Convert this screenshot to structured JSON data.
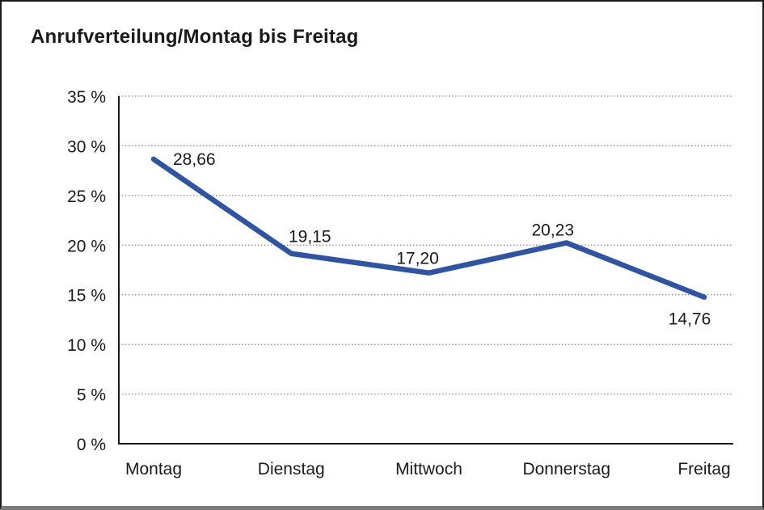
{
  "frame": {
    "border_color": "#1a1a1a",
    "bottom_bar_color": "#7a7a7a",
    "background": "#ffffff"
  },
  "chart_data": {
    "type": "line",
    "title": "Anrufverteilung/Montag bis Freitag",
    "categories": [
      "Montag",
      "Dienstag",
      "Mittwoch",
      "Donnerstag",
      "Freitag"
    ],
    "series": [
      {
        "name": "Anrufverteilung",
        "values": [
          28.66,
          19.15,
          17.2,
          20.23,
          14.76
        ],
        "value_labels": [
          "28,66",
          "19,15",
          "17,20",
          "20,23",
          "14,76"
        ],
        "color": "#3154a0"
      }
    ],
    "xlabel": "",
    "ylabel": "",
    "ylim": [
      0,
      35
    ],
    "y_tick_step": 5,
    "y_ticks": [
      {
        "value": 35,
        "label": "35 %"
      },
      {
        "value": 30,
        "label": "30 %"
      },
      {
        "value": 25,
        "label": "25 %"
      },
      {
        "value": 20,
        "label": "20 %"
      },
      {
        "value": 15,
        "label": "15 %"
      },
      {
        "value": 10,
        "label": "10 %"
      },
      {
        "value": 5,
        "label": "5 %"
      },
      {
        "value": 0,
        "label": "0 %"
      }
    ],
    "grid": "horizontal-dotted",
    "grid_color": "#666666",
    "axis_color": "#1a1a1a",
    "text_color": "#1a1a1a",
    "legend": "none"
  }
}
